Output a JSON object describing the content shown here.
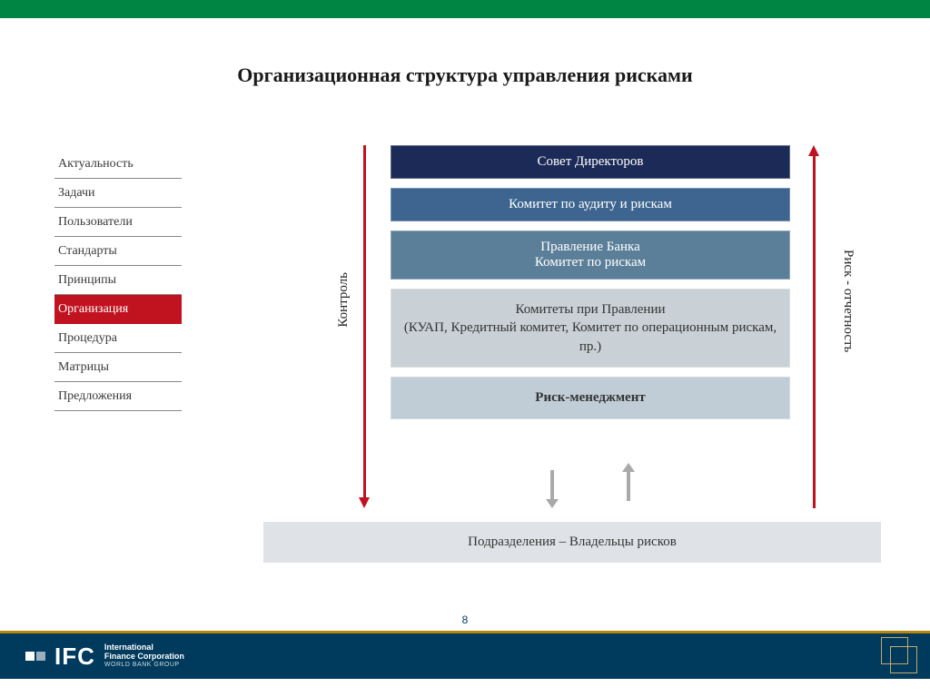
{
  "slide": {
    "title": "Организационная структура управления рисками",
    "page_number": "8"
  },
  "nav": {
    "items": [
      {
        "label": "Актуальность",
        "active": false
      },
      {
        "label": "Задачи",
        "active": false
      },
      {
        "label": "Пользователи",
        "active": false
      },
      {
        "label": "Стандарты",
        "active": false
      },
      {
        "label": "Принципы",
        "active": false
      },
      {
        "label": "Организация",
        "active": true
      },
      {
        "label": "Процедура",
        "active": false
      },
      {
        "label": "Матрицы",
        "active": false
      },
      {
        "label": "Предложения",
        "active": false
      }
    ],
    "active_bg": "#c1121f",
    "text_color": "#3a3a3a"
  },
  "diagram": {
    "blocks": [
      {
        "id": "b1",
        "lines": [
          "Совет Директоров"
        ],
        "bg": "#1c2a57",
        "fg": "#ffffff"
      },
      {
        "id": "b2",
        "lines": [
          "Комитет по аудиту и рискам"
        ],
        "bg": "#3d658f",
        "fg": "#ffffff"
      },
      {
        "id": "b3",
        "lines": [
          "Правление Банка",
          "Комитет по рискам"
        ],
        "bg": "#5c7f99",
        "fg": "#ffffff"
      },
      {
        "id": "b4",
        "lines": [
          "Комитеты при Правлении",
          "(КУАП,  Кредитный комитет, Комитет по операционным рискам, пр.)"
        ],
        "bg": "#c9d1d6",
        "fg": "#333333"
      },
      {
        "id": "b5",
        "lines": [
          "Риск-менеджмент"
        ],
        "bg": "#c1cdd6",
        "fg": "#333333",
        "bold": true
      }
    ],
    "bottom_block": {
      "label": "Подразделения – Владельцы рисков",
      "bg": "#dfe3e7",
      "fg": "#333333"
    },
    "left_arrow_label": "Контроль",
    "right_arrow_label": "Риск - отчетность",
    "arrow_color": "#c1121f",
    "mini_arrow_color": "#a9a9a9"
  },
  "branding": {
    "topbar_color": "#008542",
    "footer_rule_color": "#b8860b",
    "footer_band_color": "#003a5d",
    "logo_abbrev": "IFC",
    "logo_line1": "International",
    "logo_line2": "Finance Corporation",
    "logo_sub": "WORLD BANK GROUP"
  }
}
